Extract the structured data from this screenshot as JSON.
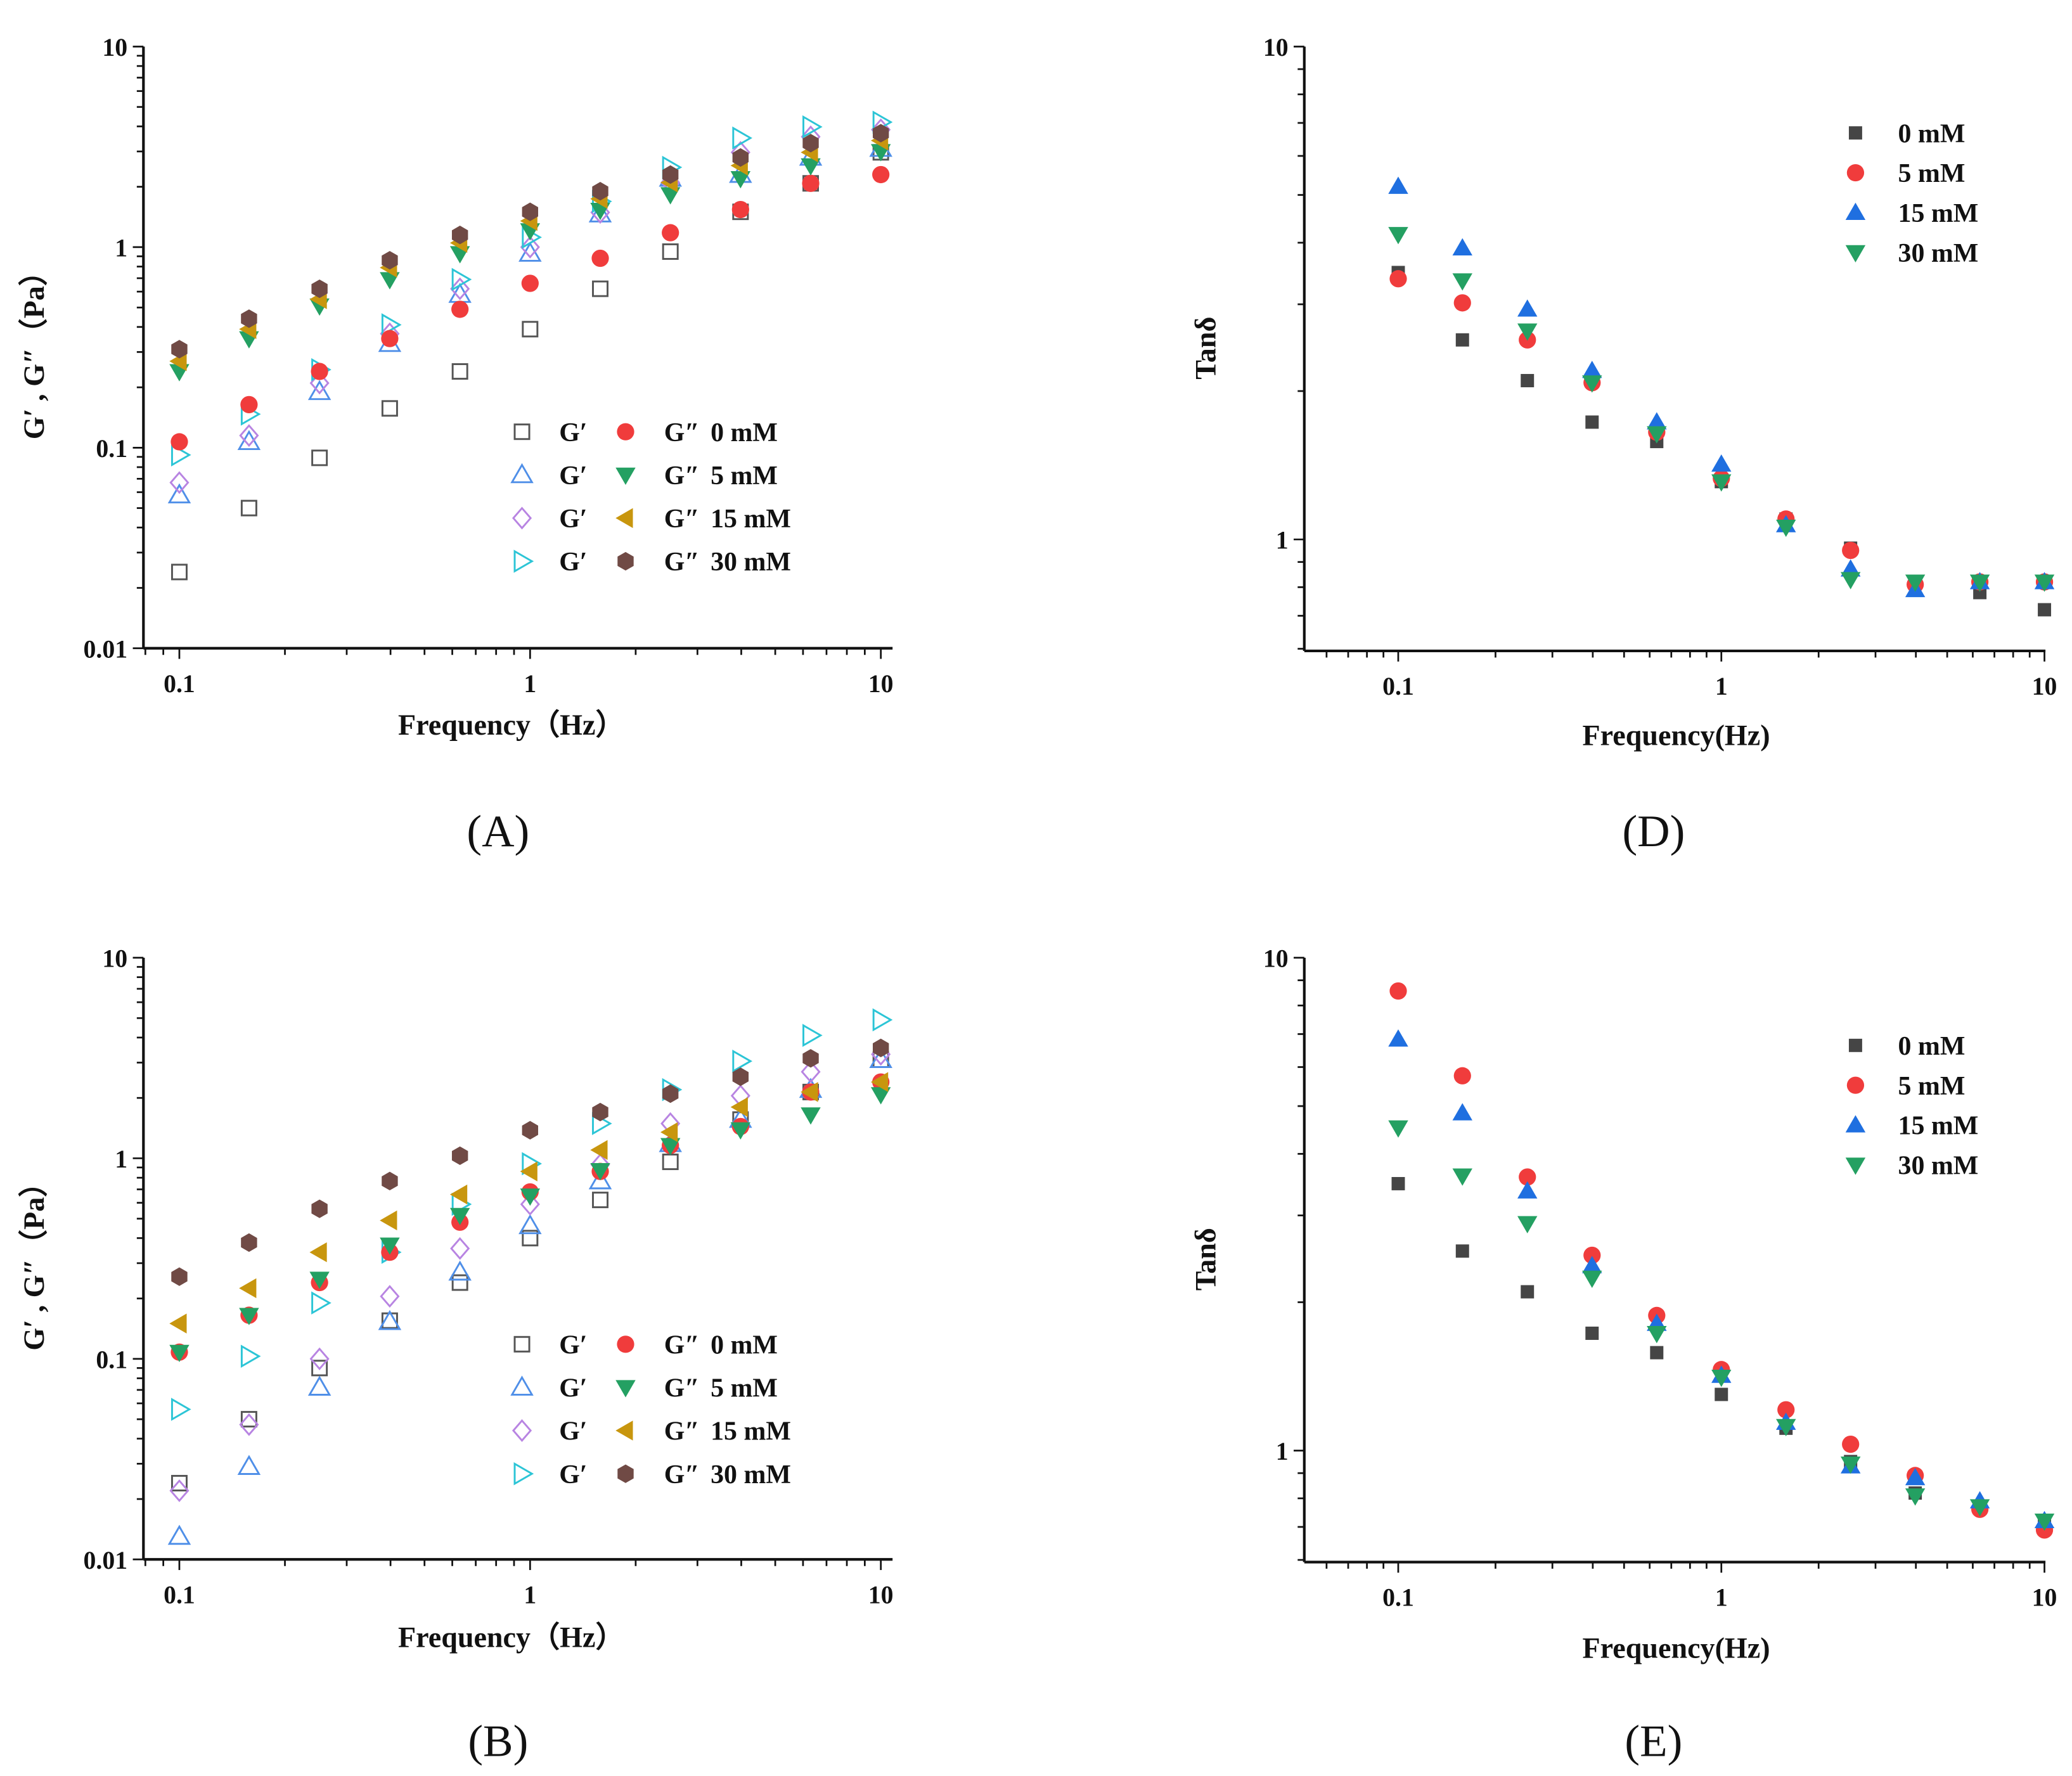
{
  "freq": [
    0.1,
    0.158,
    0.251,
    0.398,
    0.631,
    1,
    1.585,
    2.512,
    3.981,
    6.31,
    10
  ],
  "colors": {
    "c0": "#555555",
    "c0_fill": "#454545",
    "red": "#f03c3c",
    "blue": "#1f6fe0",
    "blue_open": "#4f8fe8",
    "purple": "#b884e2",
    "cyan": "#2cc5d6",
    "green": "#24a062",
    "gold": "#c8960e",
    "brown": "#704a45"
  },
  "chart_data": [
    {
      "id": "A",
      "panel_label": "(A)",
      "type": "scatter",
      "xlabel": "Frequency（Hz）",
      "ylabel": "G′ , G″（Pa）",
      "xscale": "log",
      "yscale": "log",
      "xlim": [
        0.079,
        10.8
      ],
      "ylim": [
        0.01,
        10
      ],
      "xticks": [
        "0.1",
        "1",
        "10"
      ],
      "yticks": [
        "0.01",
        "0.1",
        "1",
        "10"
      ],
      "legend_position": "bottom-right",
      "legend": [
        {
          "gp": "G′",
          "gpp": "G″",
          "label": "0 mM"
        },
        {
          "gp": "G′",
          "gpp": "G″",
          "label": "5 mM"
        },
        {
          "gp": "G′",
          "gpp": "G″",
          "label": "15 mM"
        },
        {
          "gp": "G′",
          "gpp": "G″",
          "label": "30 mM"
        }
      ],
      "series": [
        {
          "name": "G′ 0 mM",
          "marker": "square-open",
          "color": "#555555",
          "values": [
            0.024,
            0.05,
            0.089,
            0.157,
            0.24,
            0.39,
            0.62,
            0.95,
            1.5,
            2.08,
            2.97
          ]
        },
        {
          "name": "G′ 5 mM",
          "marker": "triangle-up-open",
          "color": "#4f8fe8",
          "values": [
            0.058,
            0.107,
            0.19,
            0.33,
            0.58,
            0.93,
            1.46,
            2.2,
            2.3,
            2.8,
            3.1
          ]
        },
        {
          "name": "G′ 15 mM",
          "marker": "diamond-open",
          "color": "#b884e2",
          "values": [
            0.067,
            0.115,
            0.21,
            0.37,
            0.62,
            1.0,
            1.49,
            2.1,
            2.97,
            3.55,
            3.85
          ]
        },
        {
          "name": "G′ 30 mM",
          "marker": "triangle-right-open",
          "color": "#2cc5d6",
          "values": [
            0.092,
            0.147,
            0.245,
            0.41,
            0.69,
            1.12,
            1.69,
            2.5,
            3.5,
            3.98,
            4.2
          ]
        },
        {
          "name": "G″ 0 mM",
          "marker": "circle",
          "color": "#f03c3c",
          "values": [
            0.107,
            0.164,
            0.24,
            0.35,
            0.49,
            0.66,
            0.88,
            1.18,
            1.54,
            2.08,
            2.3
          ]
        },
        {
          "name": "G″ 5 mM",
          "marker": "triangle-down",
          "color": "#24a062",
          "values": [
            0.24,
            0.35,
            0.51,
            0.69,
            0.93,
            1.21,
            1.53,
            1.83,
            2.2,
            2.55,
            3.0
          ]
        },
        {
          "name": "G″ 15 mM",
          "marker": "triangle-left",
          "color": "#c8960e",
          "values": [
            0.27,
            0.39,
            0.55,
            0.79,
            1.05,
            1.35,
            1.74,
            2.1,
            2.55,
            2.97,
            3.4
          ]
        },
        {
          "name": "G″ 30 mM",
          "marker": "hexagon",
          "color": "#704a45",
          "values": [
            0.31,
            0.44,
            0.62,
            0.86,
            1.15,
            1.5,
            1.9,
            2.3,
            2.8,
            3.3,
            3.7
          ]
        }
      ]
    },
    {
      "id": "B",
      "panel_label": "(B)",
      "type": "scatter",
      "xlabel": "Frequency（Hz）",
      "ylabel": "G′ , G″（Pa）",
      "xscale": "log",
      "yscale": "log",
      "xlim": [
        0.079,
        10.8
      ],
      "ylim": [
        0.01,
        10
      ],
      "xticks": [
        "0.1",
        "1",
        "10"
      ],
      "yticks": [
        "0.01",
        "0.1",
        "1",
        "10"
      ],
      "legend_position": "bottom-right",
      "legend": [
        {
          "gp": "G′",
          "gpp": "G″",
          "label": "0 mM"
        },
        {
          "gp": "G′",
          "gpp": "G″",
          "label": "5 mM"
        },
        {
          "gp": "G′",
          "gpp": "G″",
          "label": "15 mM"
        },
        {
          "gp": "G′",
          "gpp": "G″",
          "label": "30 mM"
        }
      ],
      "series": [
        {
          "name": "G′ 0 mM",
          "marker": "square-open",
          "color": "#555555",
          "values": [
            0.024,
            0.05,
            0.09,
            0.155,
            0.24,
            0.4,
            0.62,
            0.96,
            1.56,
            2.14,
            3.1
          ]
        },
        {
          "name": "G′ 5 mM",
          "marker": "triangle-up-open",
          "color": "#4f8fe8",
          "values": [
            0.013,
            0.029,
            0.072,
            0.153,
            0.27,
            0.46,
            0.77,
            1.18,
            1.56,
            2.2,
            3.1
          ]
        },
        {
          "name": "G′ 15 mM",
          "marker": "diamond-open",
          "color": "#b884e2",
          "values": [
            0.022,
            0.047,
            0.1,
            0.205,
            0.355,
            0.59,
            0.93,
            1.49,
            2.05,
            2.7,
            3.3
          ]
        },
        {
          "name": "G′ 30 mM",
          "marker": "triangle-right-open",
          "color": "#2cc5d6",
          "values": [
            0.056,
            0.103,
            0.19,
            0.34,
            0.59,
            0.94,
            1.49,
            2.2,
            3.05,
            4.1,
            4.9
          ]
        },
        {
          "name": "G″ 0 mM",
          "marker": "circle",
          "color": "#f03c3c",
          "values": [
            0.108,
            0.165,
            0.24,
            0.34,
            0.48,
            0.68,
            0.86,
            1.16,
            1.44,
            2.14,
            2.4
          ]
        },
        {
          "name": "G″ 5 mM",
          "marker": "triangle-down",
          "color": "#24a062",
          "values": [
            0.108,
            0.165,
            0.25,
            0.37,
            0.52,
            0.65,
            0.87,
            1.16,
            1.39,
            1.65,
            2.08
          ]
        },
        {
          "name": "G″ 15 mM",
          "marker": "triangle-left",
          "color": "#c8960e",
          "values": [
            0.15,
            0.225,
            0.34,
            0.49,
            0.66,
            0.86,
            1.1,
            1.35,
            1.8,
            2.14,
            2.4
          ]
        },
        {
          "name": "G″ 30 mM",
          "marker": "hexagon",
          "color": "#704a45",
          "values": [
            0.257,
            0.38,
            0.56,
            0.77,
            1.03,
            1.38,
            1.7,
            2.1,
            2.55,
            3.15,
            3.55
          ]
        }
      ]
    },
    {
      "id": "D",
      "panel_label": "(D)",
      "type": "scatter",
      "xlabel": "Frequency(Hz)",
      "ylabel": "Tanδ",
      "xscale": "log",
      "yscale": "log",
      "xlim": [
        0.0512,
        10.07
      ],
      "ylim": [
        0.594,
        10
      ],
      "xticks": [
        "0.1",
        "1",
        "10"
      ],
      "yticks": [
        "1",
        "10"
      ],
      "legend_position": "top-right",
      "legend": [
        {
          "label": "0 mM"
        },
        {
          "label": "5 mM"
        },
        {
          "label": "15 mM"
        },
        {
          "label": "30 mM"
        }
      ],
      "series": [
        {
          "name": "0 mM",
          "marker": "square",
          "color": "#454545",
          "values": [
            3.48,
            2.54,
            2.1,
            1.73,
            1.58,
            1.31,
            1.1,
            0.96,
            0.82,
            0.78,
            0.72
          ]
        },
        {
          "name": "5 mM",
          "marker": "circle",
          "color": "#f03c3c",
          "values": [
            3.38,
            3.02,
            2.54,
            2.08,
            1.65,
            1.33,
            1.1,
            0.95,
            0.81,
            0.82,
            0.82
          ]
        },
        {
          "name": "15 mM",
          "marker": "triangle-up",
          "color": "#1f6fe0",
          "values": [
            5.2,
            3.9,
            2.93,
            2.2,
            1.73,
            1.42,
            1.07,
            0.87,
            0.79,
            0.82,
            0.82
          ]
        },
        {
          "name": "30 mM",
          "marker": "triangle-down",
          "color": "#24a062",
          "values": [
            4.16,
            3.35,
            2.65,
            2.08,
            1.64,
            1.31,
            1.06,
            0.83,
            0.82,
            0.82,
            0.82
          ]
        }
      ]
    },
    {
      "id": "E",
      "panel_label": "(E)",
      "type": "scatter",
      "xlabel": "Frequency(Hz)",
      "ylabel": "Tanδ",
      "xscale": "log",
      "yscale": "log",
      "xlim": [
        0.0512,
        10.07
      ],
      "ylim": [
        0.594,
        10
      ],
      "xticks": [
        "0.1",
        "1",
        "10"
      ],
      "yticks": [
        "1",
        "10"
      ],
      "legend_position": "top-right",
      "legend": [
        {
          "label": "0 mM"
        },
        {
          "label": "5 mM"
        },
        {
          "label": "15 mM"
        },
        {
          "label": "30 mM"
        }
      ],
      "series": [
        {
          "name": "0 mM",
          "marker": "square",
          "color": "#454545",
          "values": [
            3.48,
            2.54,
            2.1,
            1.73,
            1.58,
            1.3,
            1.11,
            0.95,
            0.82,
            0.77,
            0.72
          ]
        },
        {
          "name": "5 mM",
          "marker": "circle",
          "color": "#f03c3c",
          "values": [
            8.56,
            5.76,
            3.59,
            2.49,
            1.88,
            1.46,
            1.21,
            1.03,
            0.89,
            0.76,
            0.69
          ]
        },
        {
          "name": "15 mM",
          "marker": "triangle-up",
          "color": "#1f6fe0",
          "values": [
            6.83,
            4.84,
            3.36,
            2.37,
            1.81,
            1.42,
            1.14,
            0.93,
            0.88,
            0.79,
            0.72
          ]
        },
        {
          "name": "30 mM",
          "marker": "triangle-down",
          "color": "#24a062",
          "values": [
            4.52,
            3.61,
            2.89,
            2.24,
            1.73,
            1.41,
            1.12,
            0.94,
            0.81,
            0.77,
            0.72
          ]
        }
      ]
    }
  ]
}
